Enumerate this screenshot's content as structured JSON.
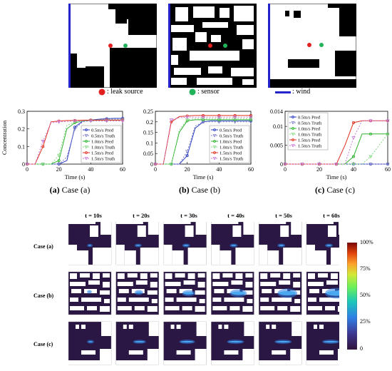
{
  "legend": {
    "leak_label": ": leak source",
    "sensor_label": ": sensor",
    "wind_label": ": wind",
    "leak_color": "#e32020",
    "sensor_color": "#22b25a",
    "wind_color": "#2323c8"
  },
  "captions": [
    {
      "letter": "(a)",
      "text": " Case (a)"
    },
    {
      "letter": "(b)",
      "text": " Case (b)"
    },
    {
      "letter": "(c)",
      "text": " Case (c)"
    }
  ],
  "heatmap": {
    "col_titles": [
      "t = 10s",
      "t = 20s",
      "t = 30s",
      "t = 40s",
      "t = 50s",
      "t = 60s"
    ],
    "row_titles": [
      "Case (a)",
      "Case (b)",
      "Case (c)"
    ],
    "colorbar_ticks": [
      "100%",
      "75%",
      "50%",
      "25%",
      "0"
    ]
  },
  "chart_data": [
    {
      "type": "line",
      "xlabel": "Time (s)",
      "ylabel": "Concentration",
      "xlim": [
        0,
        60
      ],
      "ylim": [
        0,
        0.3
      ],
      "xticks": [
        "0",
        "20",
        "40",
        "60"
      ],
      "yticks": [
        "0",
        "0.1",
        "0.2",
        "0.3"
      ],
      "x": [
        0,
        5,
        10,
        15,
        20,
        25,
        30,
        35,
        40,
        45,
        50,
        55,
        60
      ],
      "series": [
        {
          "name": "0.5m/s Pred",
          "color": "#2b3fbf",
          "style": "solid",
          "marker": "o",
          "values": [
            0,
            0,
            0,
            0,
            0,
            0.02,
            0.21,
            0.245,
            0.25,
            0.255,
            0.258,
            0.26,
            0.26
          ]
        },
        {
          "name": "0.5m/s Truth",
          "color": "#7f80c8",
          "style": "dashed",
          "marker": "v",
          "values": [
            0,
            0,
            0,
            0,
            0,
            0.04,
            0.2,
            0.24,
            0.248,
            0.252,
            0.255,
            0.255,
            0.255
          ]
        },
        {
          "name": "1.0m/s Pred",
          "color": "#2db32d",
          "style": "solid",
          "marker": "o",
          "values": [
            0,
            0,
            0,
            0,
            0.02,
            0.2,
            0.235,
            0.245,
            0.248,
            0.25,
            0.25,
            0.25,
            0.25
          ]
        },
        {
          "name": "1.0m/s Truth",
          "color": "#86d886",
          "style": "dashed",
          "marker": "v",
          "values": [
            0,
            0,
            0,
            0,
            0.05,
            0.22,
            0.24,
            0.245,
            0.247,
            0.248,
            0.248,
            0.248,
            0.248
          ]
        },
        {
          "name": "1.5m/s Pred",
          "color": "#e0301f",
          "style": "solid",
          "marker": "o",
          "values": [
            0,
            0,
            0.1,
            0.24,
            0.245,
            0.248,
            0.248,
            0.25,
            0.25,
            0.25,
            0.25,
            0.25,
            0.25
          ]
        },
        {
          "name": "1.5m/s Truth",
          "color": "#c879d8",
          "style": "dashed",
          "marker": "v",
          "values": [
            0,
            0,
            0.13,
            0.235,
            0.24,
            0.242,
            0.245,
            0.245,
            0.245,
            0.245,
            0.245,
            0.245,
            0.245
          ]
        }
      ]
    },
    {
      "type": "line",
      "xlabel": "Time (s)",
      "ylabel": "",
      "xlim": [
        0,
        60
      ],
      "ylim": [
        0,
        0.25
      ],
      "xticks": [
        "0",
        "20",
        "40",
        "60"
      ],
      "yticks": [
        "0",
        "0.05",
        "0.1",
        "0.15",
        "0.2",
        "0.25"
      ],
      "x": [
        0,
        5,
        10,
        15,
        20,
        25,
        30,
        35,
        40,
        45,
        50,
        55,
        60
      ],
      "series": [
        {
          "name": "0.5m/s Pred",
          "color": "#2b3fbf",
          "style": "solid",
          "marker": "o",
          "values": [
            0,
            0,
            0,
            0,
            0.04,
            0.17,
            0.2,
            0.205,
            0.205,
            0.205,
            0.205,
            0.205,
            0.205
          ]
        },
        {
          "name": "0.5m/s Truth",
          "color": "#7f80c8",
          "style": "dashed",
          "marker": "v",
          "values": [
            0,
            0,
            0,
            0,
            0.06,
            0.18,
            0.2,
            0.2,
            0.2,
            0.2,
            0.2,
            0.2,
            0.2
          ]
        },
        {
          "name": "1.0m/s Pred",
          "color": "#2db32d",
          "style": "solid",
          "marker": "o",
          "values": [
            0,
            0,
            0,
            0.15,
            0.205,
            0.21,
            0.21,
            0.21,
            0.21,
            0.21,
            0.21,
            0.21,
            0.21
          ]
        },
        {
          "name": "1.0m/s Truth",
          "color": "#86d886",
          "style": "dashed",
          "marker": "v",
          "values": [
            0,
            0,
            0,
            0.16,
            0.21,
            0.215,
            0.215,
            0.215,
            0.215,
            0.215,
            0.215,
            0.215,
            0.215
          ]
        },
        {
          "name": "1.5m/s Pred",
          "color": "#e0301f",
          "style": "solid",
          "marker": "o",
          "values": [
            0,
            0,
            0.2,
            0.225,
            0.228,
            0.23,
            0.23,
            0.23,
            0.23,
            0.23,
            0.23,
            0.23,
            0.23
          ]
        },
        {
          "name": "1.5m/s Truth",
          "color": "#c879d8",
          "style": "dashed",
          "marker": "v",
          "values": [
            0,
            0,
            0.21,
            0.22,
            0.222,
            0.222,
            0.222,
            0.222,
            0.222,
            0.222,
            0.222,
            0.222,
            0.222
          ]
        }
      ]
    },
    {
      "type": "line",
      "xlabel": "Time (s)",
      "ylabel": "",
      "xlim": [
        0,
        60
      ],
      "ylim": [
        0,
        0.014
      ],
      "xticks": [
        "0",
        "20",
        "40",
        "60"
      ],
      "yticks": [
        "0",
        "0.005",
        "0.01",
        "0.014"
      ],
      "x": [
        0,
        5,
        10,
        15,
        20,
        25,
        30,
        35,
        40,
        45,
        50,
        55,
        60
      ],
      "series": [
        {
          "name": "0.5m/s Pred",
          "color": "#2b3fbf",
          "style": "solid",
          "marker": "o",
          "values": [
            0,
            0,
            0,
            0,
            0,
            0,
            0,
            0,
            0,
            0,
            0,
            0,
            0
          ]
        },
        {
          "name": "0.5m/s Truth",
          "color": "#7f80c8",
          "style": "dashed",
          "marker": "v",
          "values": [
            0,
            0,
            0,
            0,
            0,
            0,
            0,
            0,
            0,
            0,
            0,
            0,
            0
          ]
        },
        {
          "name": "1.0m/s Pred",
          "color": "#2db32d",
          "style": "solid",
          "marker": "o",
          "values": [
            0,
            0,
            0,
            0,
            0,
            0,
            0,
            0,
            0.002,
            0.008,
            0.008,
            0.008,
            0.008
          ]
        },
        {
          "name": "1.0m/s Truth",
          "color": "#86d886",
          "style": "dashed",
          "marker": "v",
          "values": [
            0,
            0,
            0,
            0,
            0,
            0,
            0,
            0,
            0,
            0,
            0.002,
            0.005,
            0.008
          ]
        },
        {
          "name": "1.5m/s Pred",
          "color": "#e0301f",
          "style": "solid",
          "marker": "o",
          "values": [
            0,
            0,
            0,
            0,
            0,
            0,
            0,
            0.005,
            0.011,
            0.0115,
            0.0115,
            0.0115,
            0.0115
          ]
        },
        {
          "name": "1.5m/s Truth",
          "color": "#c879d8",
          "style": "dashed",
          "marker": "v",
          "values": [
            0,
            0,
            0,
            0,
            0,
            0,
            0,
            0,
            0.007,
            0.0115,
            0.0115,
            0.0115,
            0.0115
          ]
        }
      ]
    }
  ]
}
